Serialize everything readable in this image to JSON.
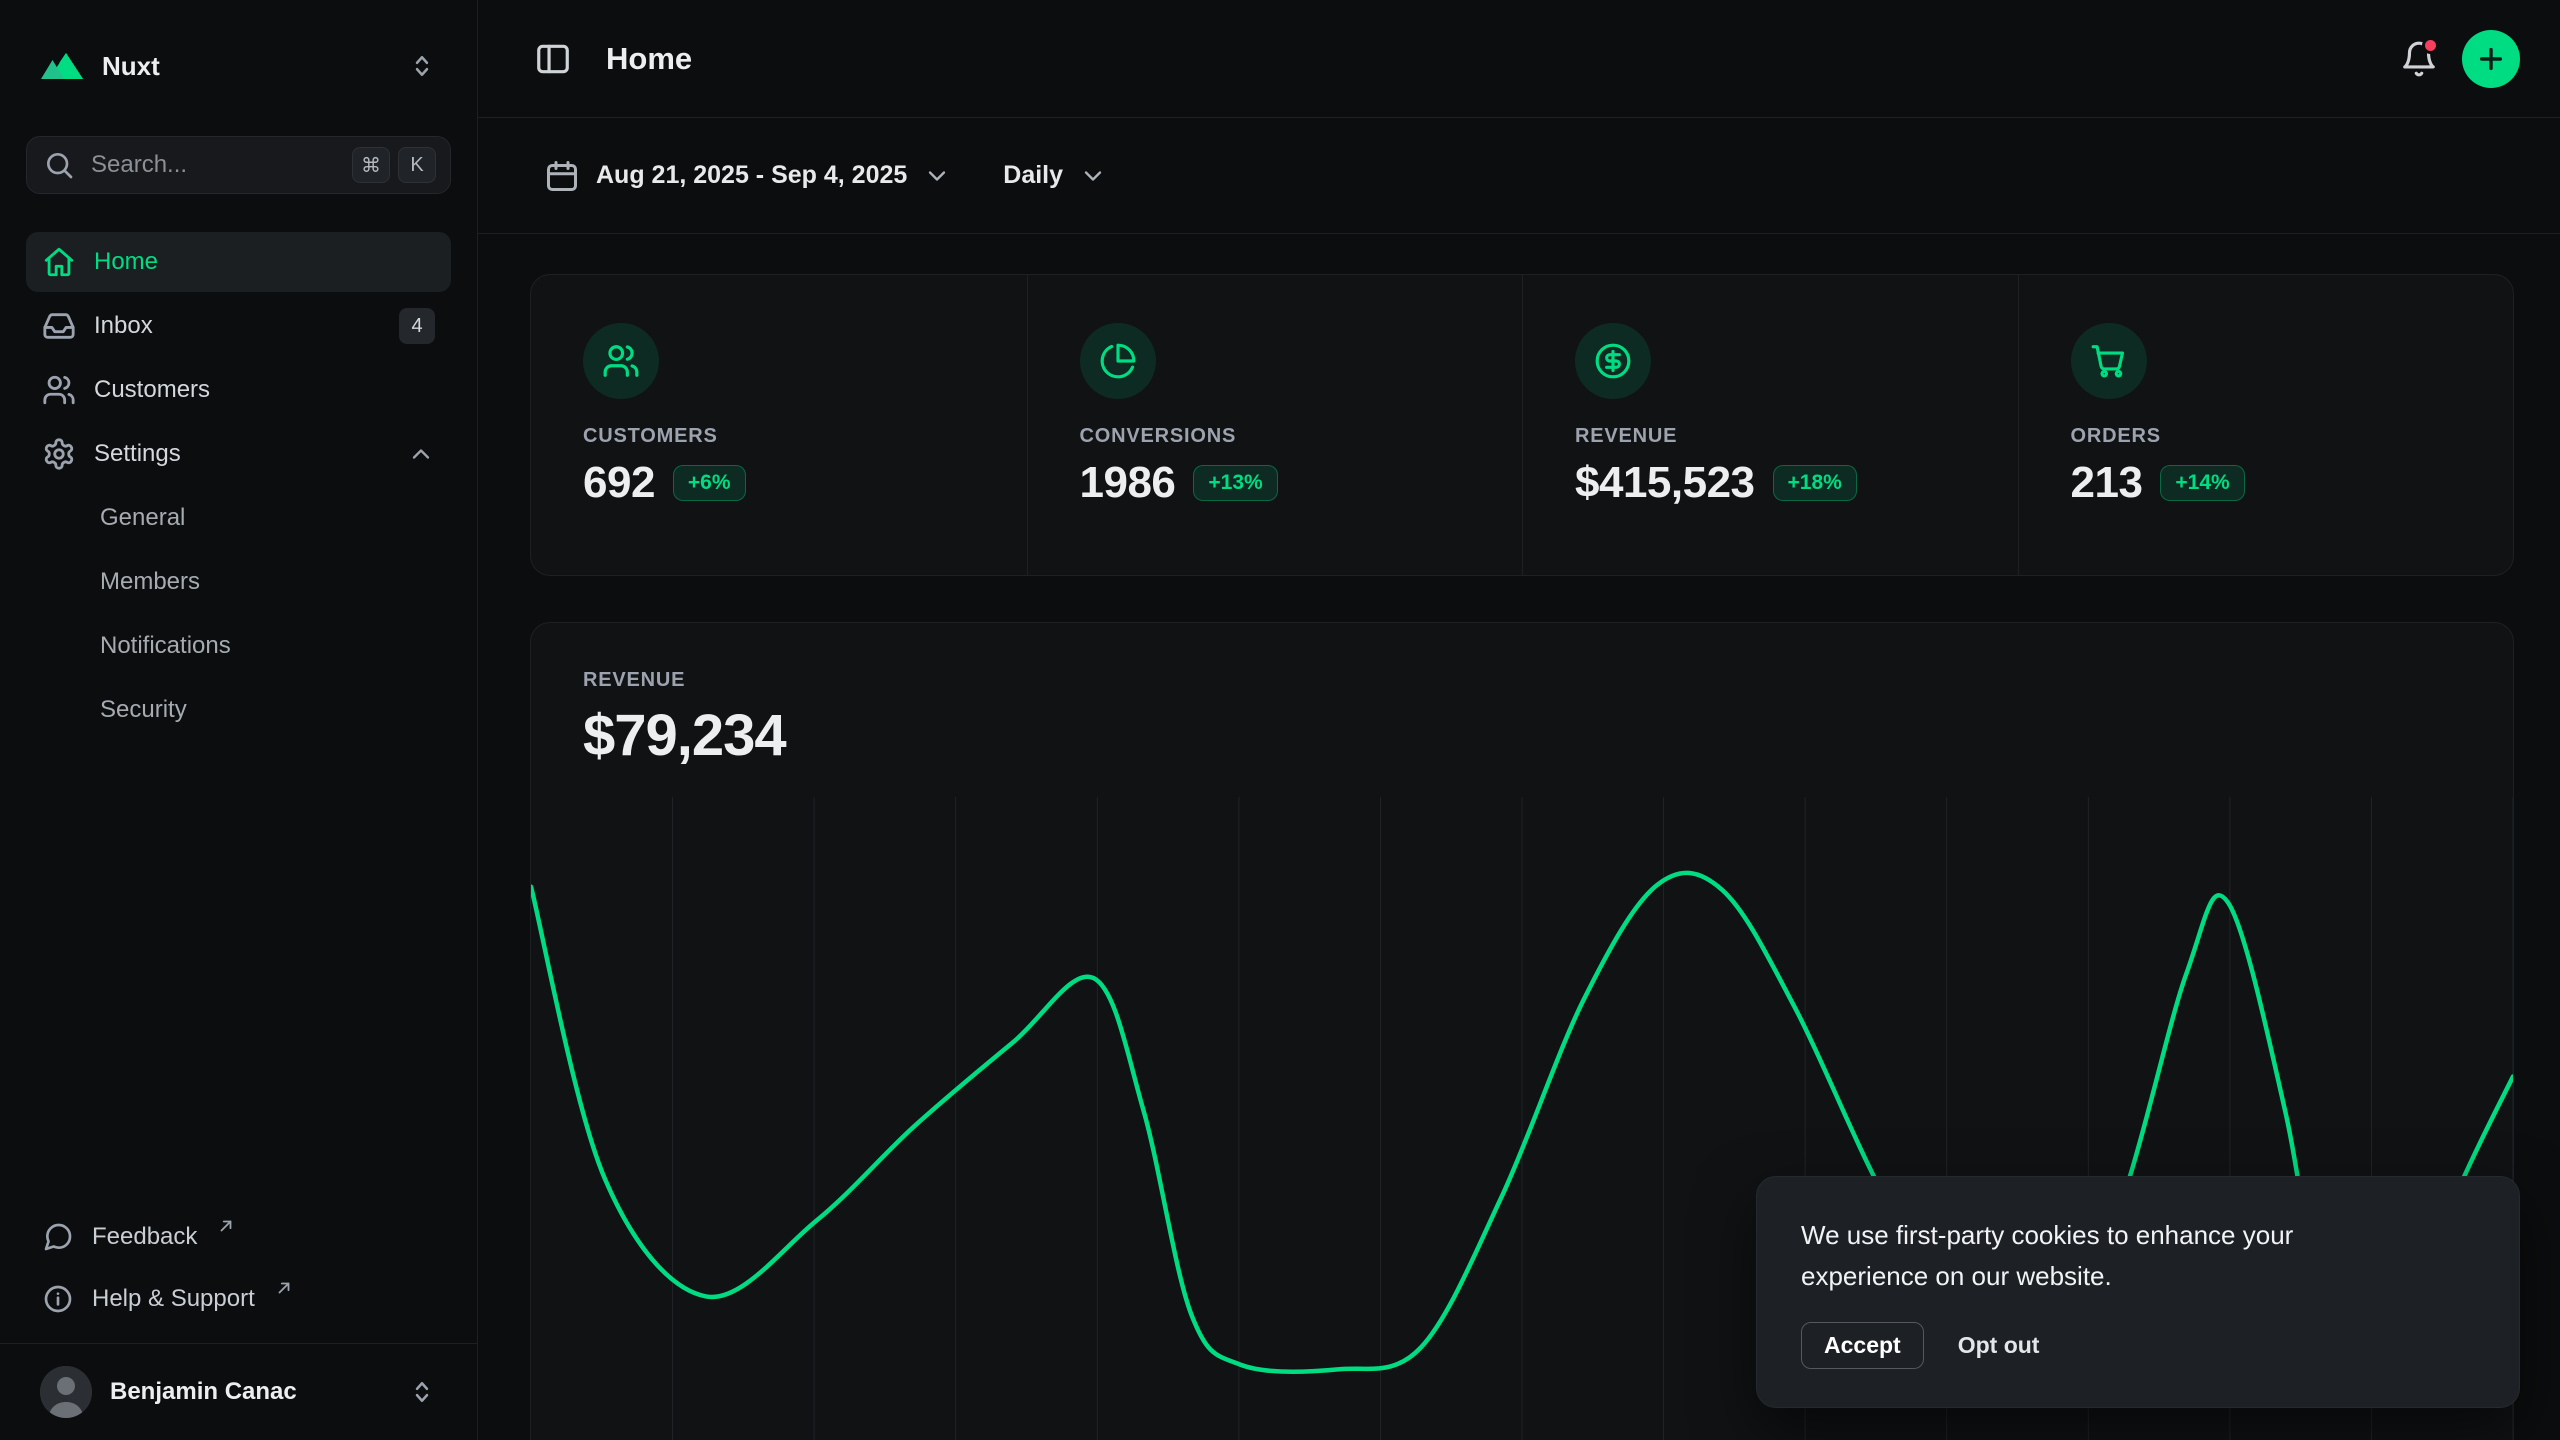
{
  "app": {
    "accent_color": "#00dc82",
    "background_color": "#0c0d0e"
  },
  "sidebar": {
    "workspace": {
      "name": "Nuxt"
    },
    "search": {
      "placeholder": "Search...",
      "keys": [
        "⌘",
        "K"
      ]
    },
    "nav": [
      {
        "label": "Home",
        "icon": "home-icon",
        "active": true
      },
      {
        "label": "Inbox",
        "icon": "inbox-icon",
        "badge": "4"
      },
      {
        "label": "Customers",
        "icon": "users-icon"
      },
      {
        "label": "Settings",
        "icon": "gear-icon",
        "expanded": true
      }
    ],
    "settings_children": [
      "General",
      "Members",
      "Notifications",
      "Security"
    ],
    "footer_links": [
      {
        "label": "Feedback",
        "external": true
      },
      {
        "label": "Help & Support",
        "external": true
      }
    ],
    "user": {
      "name": "Benjamin Canac"
    }
  },
  "header": {
    "title": "Home"
  },
  "filters": {
    "date_range": "Aug 21, 2025 - Sep 4, 2025",
    "granularity": "Daily"
  },
  "stats": [
    {
      "label": "CUSTOMERS",
      "value": "692",
      "delta": "+6%",
      "icon": "users-icon"
    },
    {
      "label": "CONVERSIONS",
      "value": "1986",
      "delta": "+13%",
      "icon": "pie-chart-icon"
    },
    {
      "label": "REVENUE",
      "value": "$415,523",
      "delta": "+18%",
      "icon": "dollar-circle-icon"
    },
    {
      "label": "ORDERS",
      "value": "213",
      "delta": "+14%",
      "icon": "cart-icon"
    }
  ],
  "revenue_card": {
    "label": "REVENUE",
    "value": "$79,234"
  },
  "chart_data": {
    "type": "line",
    "title": "REVENUE",
    "current_value": "$79,234",
    "series_color": "#00dc82",
    "gridline_count": 14,
    "axes_visible": false,
    "note": "axis tick labels cropped out of view; points are normalized screen positions (x 0-1 left to right, y 0-1 top to bottom)",
    "points": [
      [
        0.0,
        0.135
      ],
      [
        0.037,
        0.573
      ],
      [
        0.088,
        0.752
      ],
      [
        0.144,
        0.638
      ],
      [
        0.193,
        0.497
      ],
      [
        0.243,
        0.37
      ],
      [
        0.284,
        0.273
      ],
      [
        0.309,
        0.472
      ],
      [
        0.333,
        0.778
      ],
      [
        0.358,
        0.855
      ],
      [
        0.407,
        0.862
      ],
      [
        0.449,
        0.829
      ],
      [
        0.49,
        0.6
      ],
      [
        0.531,
        0.306
      ],
      [
        0.568,
        0.133
      ],
      [
        0.601,
        0.14
      ],
      [
        0.638,
        0.319
      ],
      [
        0.687,
        0.625
      ],
      [
        0.741,
        0.862
      ],
      [
        0.794,
        0.676
      ],
      [
        0.835,
        0.268
      ],
      [
        0.856,
        0.158
      ],
      [
        0.885,
        0.472
      ],
      [
        0.912,
        0.893
      ],
      [
        0.942,
        0.804
      ],
      [
        0.975,
        0.574
      ],
      [
        1.0,
        0.421
      ]
    ]
  },
  "cookie_banner": {
    "message": "We use first-party cookies to enhance your experience on our website.",
    "accept_label": "Accept",
    "optout_label": "Opt out"
  }
}
